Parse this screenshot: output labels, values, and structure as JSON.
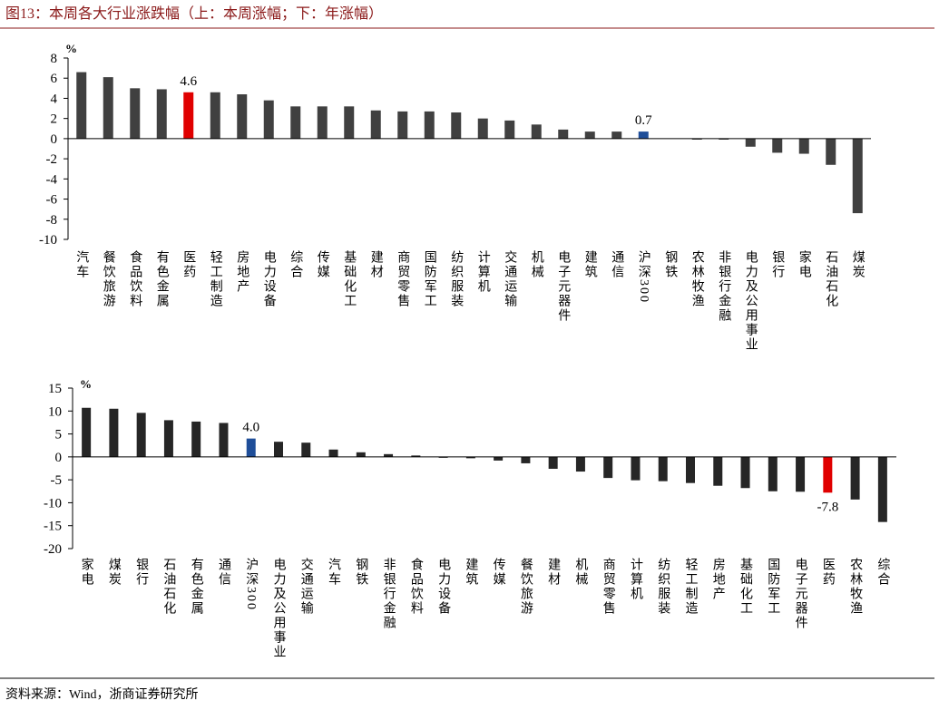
{
  "title": "图13：本周各大行业涨跌幅（上：本周涨幅；下：年涨幅）",
  "source": "资料来源：Wind，浙商证券研究所",
  "chart_data": [
    {
      "type": "bar",
      "unit": "%",
      "categories": [
        "汽车",
        "餐饮旅游",
        "食品饮料",
        "有色金属",
        "医药",
        "轻工制造",
        "房地产",
        "电力设备",
        "综合",
        "传媒",
        "基础化工",
        "建材",
        "商贸零售",
        "国防军工",
        "纺织服装",
        "计算机",
        "交通运输",
        "机械",
        "电子元器件",
        "建筑",
        "通信",
        "沪深300",
        "钢铁",
        "农林牧渔",
        "非银行金融",
        "电力及公用事业",
        "银行",
        "家电",
        "石油石化",
        "煤炭"
      ],
      "values": [
        6.6,
        6.1,
        5.0,
        4.9,
        4.6,
        4.6,
        4.4,
        3.8,
        3.2,
        3.2,
        3.2,
        2.8,
        2.7,
        2.7,
        2.6,
        2.0,
        1.8,
        1.4,
        0.9,
        0.7,
        0.7,
        0.7,
        0.0,
        -0.1,
        -0.1,
        -0.8,
        -1.4,
        -1.5,
        -2.6,
        -7.4
      ],
      "value_labels": [
        null,
        null,
        null,
        null,
        "4.6",
        null,
        null,
        null,
        null,
        null,
        null,
        null,
        null,
        null,
        null,
        null,
        null,
        null,
        null,
        null,
        null,
        "0.7",
        null,
        null,
        null,
        null,
        null,
        null,
        null,
        null
      ],
      "colors": [
        "#404040",
        "#404040",
        "#404040",
        "#404040",
        "#e00000",
        "#404040",
        "#404040",
        "#404040",
        "#404040",
        "#404040",
        "#404040",
        "#404040",
        "#404040",
        "#404040",
        "#404040",
        "#404040",
        "#404040",
        "#404040",
        "#404040",
        "#404040",
        "#404040",
        "#1f4e99",
        "#404040",
        "#404040",
        "#404040",
        "#404040",
        "#404040",
        "#404040",
        "#404040",
        "#404040"
      ],
      "ylim": [
        -10,
        8
      ],
      "yticks": [
        -10,
        -8,
        -6,
        -4,
        -2,
        0,
        2,
        4,
        6,
        8
      ]
    },
    {
      "type": "bar",
      "unit": "%",
      "categories": [
        "家电",
        "煤炭",
        "银行",
        "石油石化",
        "有色金属",
        "通信",
        "沪深300",
        "电力及公用事业",
        "交通运输",
        "汽车",
        "钢铁",
        "非银行金融",
        "食品饮料",
        "电力设备",
        "建筑",
        "传媒",
        "餐饮旅游",
        "建材",
        "机械",
        "商贸零售",
        "计算机",
        "纺织服装",
        "轻工制造",
        "房地产",
        "基础化工",
        "国防军工",
        "电子元器件",
        "医药",
        "农林牧渔",
        "综合"
      ],
      "values": [
        10.7,
        10.5,
        9.6,
        8.0,
        7.7,
        7.4,
        4.0,
        3.3,
        3.1,
        1.6,
        1.0,
        0.6,
        0.3,
        -0.2,
        -0.3,
        -0.8,
        -1.4,
        -2.6,
        -3.2,
        -4.6,
        -5.1,
        -5.3,
        -5.7,
        -6.3,
        -6.8,
        -7.5,
        -7.6,
        -7.8,
        -9.3,
        -14.2
      ],
      "value_labels": [
        null,
        null,
        null,
        null,
        null,
        null,
        "4.0",
        null,
        null,
        null,
        null,
        null,
        null,
        null,
        null,
        null,
        null,
        null,
        null,
        null,
        null,
        null,
        null,
        null,
        null,
        null,
        null,
        "-7.8",
        null,
        null
      ],
      "colors": [
        "#262626",
        "#262626",
        "#262626",
        "#262626",
        "#262626",
        "#262626",
        "#1f4e99",
        "#262626",
        "#262626",
        "#262626",
        "#262626",
        "#262626",
        "#262626",
        "#262626",
        "#262626",
        "#262626",
        "#262626",
        "#262626",
        "#262626",
        "#262626",
        "#262626",
        "#262626",
        "#262626",
        "#262626",
        "#262626",
        "#262626",
        "#262626",
        "#e00000",
        "#262626",
        "#262626"
      ],
      "ylim": [
        -20,
        15
      ],
      "yticks": [
        -20,
        -15,
        -10,
        -5,
        0,
        5,
        10,
        15
      ]
    }
  ]
}
